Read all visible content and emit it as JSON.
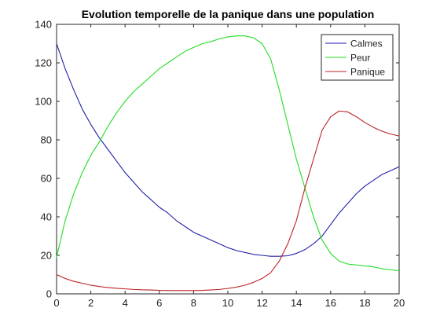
{
  "chart_data": {
    "type": "line",
    "title": "Evolution temporelle de la panique dans une population",
    "xlabel": "",
    "ylabel": "",
    "xlim": [
      0,
      20
    ],
    "ylim": [
      0,
      140
    ],
    "x_ticks": [
      0,
      2,
      4,
      6,
      8,
      10,
      12,
      14,
      16,
      18,
      20
    ],
    "y_ticks": [
      0,
      20,
      40,
      60,
      80,
      100,
      120,
      140
    ],
    "grid": false,
    "legend_position": "top-right",
    "x": [
      0,
      0.5,
      1,
      1.5,
      2,
      2.5,
      3,
      3.5,
      4,
      4.5,
      5,
      5.5,
      6,
      6.5,
      7,
      7.5,
      8,
      8.5,
      9,
      9.5,
      10,
      10.5,
      11,
      11.5,
      12,
      12.5,
      13,
      13.5,
      14,
      14.5,
      15,
      15.5,
      16,
      16.5,
      17,
      17.5,
      18,
      18.5,
      19,
      19.5,
      20
    ],
    "series": [
      {
        "name": "Calmes",
        "color": "#1f1fa8",
        "values": [
          130,
          117,
          106,
          96,
          88,
          81,
          75,
          69,
          63,
          58,
          53,
          49,
          45,
          42,
          38,
          35,
          32,
          30,
          28,
          26,
          24,
          22.5,
          21.5,
          20.5,
          20,
          19.5,
          19.5,
          19.8,
          21,
          23,
          26,
          30,
          36,
          42,
          47,
          52,
          56,
          59,
          62,
          64,
          66
        ]
      },
      {
        "name": "Peur",
        "color": "#22dd22",
        "values": [
          19,
          38,
          52,
          63,
          72,
          79,
          87,
          94,
          100,
          105,
          109,
          113,
          117,
          120,
          123,
          126,
          128,
          130,
          131,
          132.5,
          133.5,
          134,
          134,
          133,
          130,
          122,
          106,
          88,
          70,
          55,
          40,
          28,
          21,
          17,
          15.5,
          15,
          14.5,
          14,
          13,
          12.5,
          12
        ]
      },
      {
        "name": "Panique",
        "color": "#bb2222",
        "values": [
          10,
          8,
          6.5,
          5.5,
          4.5,
          3.8,
          3.3,
          2.9,
          2.6,
          2.3,
          2.1,
          2,
          1.8,
          1.7,
          1.7,
          1.7,
          1.7,
          1.8,
          2,
          2.3,
          2.8,
          3.5,
          4.5,
          6,
          8,
          11,
          17,
          26,
          38,
          55,
          70,
          85,
          92,
          95,
          94.5,
          92,
          89,
          86.5,
          84.5,
          83,
          82
        ]
      }
    ]
  }
}
